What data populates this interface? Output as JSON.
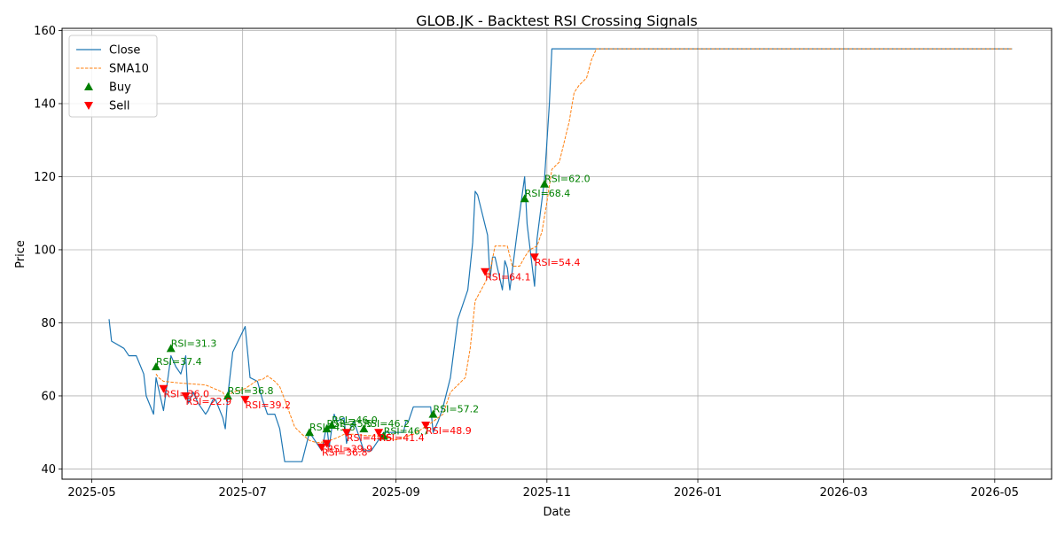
{
  "chart_data": {
    "type": "line",
    "title": "GLOB.JK - Backtest RSI Crossing Signals",
    "xlabel": "Date",
    "ylabel": "Price",
    "x_range": [
      "2025-04-19",
      "2026-05-24"
    ],
    "ylim": [
      37.2,
      160.6
    ],
    "grid": true,
    "legend_position": "top-left",
    "x_ticks": [
      {
        "date": "2025-05-01",
        "label": "2025-05"
      },
      {
        "date": "2025-07-01",
        "label": "2025-07"
      },
      {
        "date": "2025-09-01",
        "label": "2025-09"
      },
      {
        "date": "2025-11-01",
        "label": "2025-11"
      },
      {
        "date": "2026-01-01",
        "label": "2026-01"
      },
      {
        "date": "2026-03-01",
        "label": "2026-03"
      },
      {
        "date": "2026-05-01",
        "label": "2026-05"
      }
    ],
    "y_ticks": [
      40,
      60,
      80,
      100,
      120,
      140,
      160
    ],
    "colors": {
      "close": "#1f77b4",
      "sma": "#ff7f0e",
      "buy": "#008000",
      "sell": "#ff0000",
      "grid": "#b0b0b0"
    },
    "series": [
      {
        "name": "Close",
        "style": "solid",
        "points": [
          [
            "2025-05-08",
            81
          ],
          [
            "2025-05-09",
            75
          ],
          [
            "2025-05-14",
            73
          ],
          [
            "2025-05-16",
            71
          ],
          [
            "2025-05-19",
            71
          ],
          [
            "2025-05-22",
            66
          ],
          [
            "2025-05-23",
            60
          ],
          [
            "2025-05-26",
            55
          ],
          [
            "2025-05-27",
            65
          ],
          [
            "2025-05-28",
            62
          ],
          [
            "2025-05-30",
            56
          ],
          [
            "2025-06-02",
            71
          ],
          [
            "2025-06-04",
            68
          ],
          [
            "2025-06-06",
            66
          ],
          [
            "2025-06-08",
            71
          ],
          [
            "2025-06-09",
            58
          ],
          [
            "2025-06-11",
            61
          ],
          [
            "2025-06-13",
            58
          ],
          [
            "2025-06-16",
            55
          ],
          [
            "2025-06-17",
            56
          ],
          [
            "2025-06-19",
            59
          ],
          [
            "2025-06-20",
            59
          ],
          [
            "2025-06-23",
            54
          ],
          [
            "2025-06-24",
            51
          ],
          [
            "2025-06-25",
            60
          ],
          [
            "2025-06-27",
            72
          ],
          [
            "2025-07-02",
            79
          ],
          [
            "2025-07-04",
            65
          ],
          [
            "2025-07-07",
            64
          ],
          [
            "2025-07-09",
            59
          ],
          [
            "2025-07-11",
            55
          ],
          [
            "2025-07-14",
            55
          ],
          [
            "2025-07-16",
            51
          ],
          [
            "2025-07-18",
            42
          ],
          [
            "2025-07-23",
            42
          ],
          [
            "2025-07-25",
            42
          ],
          [
            "2025-07-28",
            50
          ],
          [
            "2025-07-31",
            47
          ],
          [
            "2025-08-02",
            45
          ],
          [
            "2025-08-04",
            52
          ],
          [
            "2025-08-05",
            46
          ],
          [
            "2025-08-06",
            51
          ],
          [
            "2025-08-07",
            55
          ],
          [
            "2025-08-08",
            53
          ],
          [
            "2025-08-11",
            54
          ],
          [
            "2025-08-12",
            47
          ],
          [
            "2025-08-13",
            50
          ],
          [
            "2025-08-15",
            53
          ],
          [
            "2025-08-19",
            45
          ],
          [
            "2025-08-20",
            45
          ],
          [
            "2025-08-22",
            45
          ],
          [
            "2025-08-25",
            48
          ],
          [
            "2025-08-27",
            50
          ],
          [
            "2025-09-01",
            50
          ],
          [
            "2025-09-04",
            50
          ],
          [
            "2025-09-05",
            53
          ],
          [
            "2025-09-06",
            53
          ],
          [
            "2025-09-08",
            57
          ],
          [
            "2025-09-15",
            57
          ],
          [
            "2025-09-16",
            50
          ],
          [
            "2025-09-18",
            53
          ],
          [
            "2025-09-20",
            57
          ],
          [
            "2025-09-23",
            65
          ],
          [
            "2025-09-26",
            81
          ],
          [
            "2025-09-30",
            89
          ],
          [
            "2025-10-02",
            102
          ],
          [
            "2025-10-03",
            116
          ],
          [
            "2025-10-04",
            115
          ],
          [
            "2025-10-08",
            104
          ],
          [
            "2025-10-09",
            92
          ],
          [
            "2025-10-10",
            98
          ],
          [
            "2025-10-11",
            98
          ],
          [
            "2025-10-14",
            89
          ],
          [
            "2025-10-15",
            97
          ],
          [
            "2025-10-16",
            95
          ],
          [
            "2025-10-17",
            89
          ],
          [
            "2025-10-20",
            105
          ],
          [
            "2025-10-22",
            115
          ],
          [
            "2025-10-23",
            120
          ],
          [
            "2025-10-24",
            107
          ],
          [
            "2025-10-27",
            90
          ],
          [
            "2025-10-28",
            103
          ],
          [
            "2025-10-31",
            119
          ],
          [
            "2025-11-02",
            140
          ],
          [
            "2025-11-03",
            155
          ],
          [
            "2025-11-07",
            155
          ],
          [
            "2026-05-08",
            155
          ]
        ]
      },
      {
        "name": "SMA10",
        "style": "dashed",
        "points": [
          [
            "2025-05-27",
            66
          ],
          [
            "2025-05-28",
            65
          ],
          [
            "2025-05-30",
            64
          ],
          [
            "2025-06-06",
            63.5
          ],
          [
            "2025-06-16",
            63
          ],
          [
            "2025-06-23",
            61
          ],
          [
            "2025-06-24",
            59.5
          ],
          [
            "2025-06-27",
            61
          ],
          [
            "2025-07-02",
            62
          ],
          [
            "2025-07-07",
            64.3
          ],
          [
            "2025-07-09",
            64.5
          ],
          [
            "2025-07-11",
            65.5
          ],
          [
            "2025-07-14",
            64
          ],
          [
            "2025-07-16",
            62.5
          ],
          [
            "2025-07-18",
            59
          ],
          [
            "2025-07-22",
            51.5
          ],
          [
            "2025-07-25",
            49.5
          ],
          [
            "2025-07-28",
            47.8
          ],
          [
            "2025-07-31",
            47.2
          ],
          [
            "2025-08-04",
            47.5
          ],
          [
            "2025-08-08",
            48.5
          ],
          [
            "2025-08-11",
            49.5
          ],
          [
            "2025-08-15",
            49.5
          ],
          [
            "2025-08-19",
            49.2
          ],
          [
            "2025-08-25",
            49
          ],
          [
            "2025-09-01",
            48
          ],
          [
            "2025-09-08",
            49.5
          ],
          [
            "2025-09-15",
            52.5
          ],
          [
            "2025-09-18",
            54
          ],
          [
            "2025-09-20",
            55
          ],
          [
            "2025-09-23",
            61
          ],
          [
            "2025-09-26",
            63
          ],
          [
            "2025-09-29",
            65
          ],
          [
            "2025-10-01",
            73
          ],
          [
            "2025-10-03",
            86
          ],
          [
            "2025-10-07",
            91
          ],
          [
            "2025-10-09",
            94
          ],
          [
            "2025-10-11",
            101
          ],
          [
            "2025-10-16",
            101
          ],
          [
            "2025-10-18",
            95.5
          ],
          [
            "2025-10-21",
            95.5
          ],
          [
            "2025-10-23",
            98
          ],
          [
            "2025-10-25",
            100
          ],
          [
            "2025-10-28",
            101
          ],
          [
            "2025-10-30",
            105
          ],
          [
            "2025-11-01",
            113
          ],
          [
            "2025-11-03",
            122
          ],
          [
            "2025-11-06",
            124
          ],
          [
            "2025-11-10",
            135
          ],
          [
            "2025-11-12",
            143
          ],
          [
            "2025-11-14",
            145
          ],
          [
            "2025-11-17",
            147
          ],
          [
            "2025-11-19",
            152
          ],
          [
            "2025-11-21",
            155
          ],
          [
            "2026-05-08",
            155
          ]
        ]
      }
    ],
    "buy_signals": [
      {
        "date": "2025-05-27",
        "price": 68,
        "label": "RSI=37.4"
      },
      {
        "date": "2025-06-02",
        "price": 73,
        "label": "RSI=31.3"
      },
      {
        "date": "2025-06-25",
        "price": 60,
        "label": "RSI=36.8"
      },
      {
        "date": "2025-07-28",
        "price": 50,
        "label": "RSI=45.8"
      },
      {
        "date": "2025-08-04",
        "price": 51,
        "label": "RSI=45.5"
      },
      {
        "date": "2025-08-06",
        "price": 52,
        "label": "RSI=46.0"
      },
      {
        "date": "2025-08-19",
        "price": 51,
        "label": "RSI=46.2"
      },
      {
        "date": "2025-08-27",
        "price": 49,
        "label": "RSI=46.7"
      },
      {
        "date": "2025-09-16",
        "price": 55,
        "label": "RSI=57.2"
      },
      {
        "date": "2025-10-23",
        "price": 114,
        "label": "RSI=68.4"
      },
      {
        "date": "2025-10-31",
        "price": 118,
        "label": "RSI=62.0"
      }
    ],
    "sell_signals": [
      {
        "date": "2025-05-30",
        "price": 62,
        "label": "RSI=36.0"
      },
      {
        "date": "2025-06-08",
        "price": 60,
        "label": "RSI=22.9"
      },
      {
        "date": "2025-07-02",
        "price": 59,
        "label": "RSI=39.2"
      },
      {
        "date": "2025-08-02",
        "price": 46,
        "label": "RSI=36.8"
      },
      {
        "date": "2025-08-04",
        "price": 47,
        "label": "RSI=39.9"
      },
      {
        "date": "2025-08-12",
        "price": 50,
        "label": "RSI=44.5"
      },
      {
        "date": "2025-08-25",
        "price": 50,
        "label": "RSI=41.4"
      },
      {
        "date": "2025-09-13",
        "price": 52,
        "label": "RSI=48.9"
      },
      {
        "date": "2025-10-07",
        "price": 94,
        "label": "RSI=64.1"
      },
      {
        "date": "2025-10-27",
        "price": 98,
        "label": "RSI=54.4"
      }
    ],
    "legend": [
      {
        "key": "close",
        "label": "Close"
      },
      {
        "key": "sma",
        "label": "SMA10"
      },
      {
        "key": "buy",
        "label": "Buy"
      },
      {
        "key": "sell",
        "label": "Sell"
      }
    ]
  }
}
